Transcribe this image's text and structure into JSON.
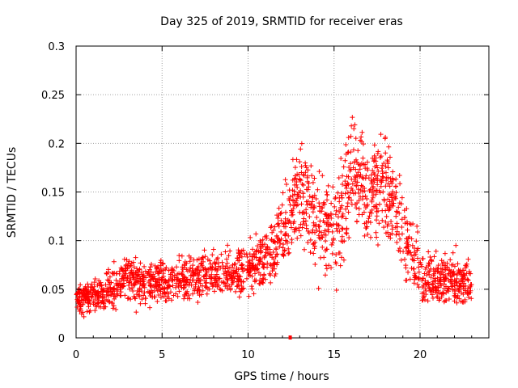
{
  "chart_data": {
    "type": "scatter",
    "title": "Day 325 of 2019, SRMTID for receiver eras",
    "xlabel": "GPS time / hours",
    "ylabel": "SRMTID / TECUs",
    "xlim": [
      0,
      24
    ],
    "ylim": [
      0,
      0.3
    ],
    "xticks": [
      0,
      5,
      10,
      15,
      20
    ],
    "yticks": [
      0,
      0.05,
      0.1,
      0.15,
      0.2,
      0.25,
      0.3
    ],
    "xtick_labels": [
      "0",
      "5",
      "10",
      "15",
      "20"
    ],
    "ytick_labels": [
      "0",
      "0.05",
      "0.1",
      "0.15",
      "0.2",
      "0.25",
      "0.3"
    ],
    "grid": true,
    "marker": "+",
    "color": "#ff0000",
    "outlier": {
      "x": 12.45,
      "y": 0.0
    },
    "trend": [
      {
        "x": 0.0,
        "mean": 0.04,
        "spread": 0.01
      },
      {
        "x": 1.0,
        "mean": 0.045,
        "spread": 0.012
      },
      {
        "x": 2.0,
        "mean": 0.048,
        "spread": 0.013
      },
      {
        "x": 3.0,
        "mean": 0.065,
        "spread": 0.018
      },
      {
        "x": 4.0,
        "mean": 0.055,
        "spread": 0.013
      },
      {
        "x": 5.0,
        "mean": 0.058,
        "spread": 0.014
      },
      {
        "x": 6.0,
        "mean": 0.06,
        "spread": 0.015
      },
      {
        "x": 7.0,
        "mean": 0.062,
        "spread": 0.015
      },
      {
        "x": 8.0,
        "mean": 0.065,
        "spread": 0.015
      },
      {
        "x": 9.0,
        "mean": 0.065,
        "spread": 0.016
      },
      {
        "x": 10.0,
        "mean": 0.072,
        "spread": 0.018
      },
      {
        "x": 11.0,
        "mean": 0.08,
        "spread": 0.02
      },
      {
        "x": 12.0,
        "mean": 0.105,
        "spread": 0.025
      },
      {
        "x": 13.0,
        "mean": 0.15,
        "spread": 0.035
      },
      {
        "x": 14.0,
        "mean": 0.12,
        "spread": 0.032
      },
      {
        "x": 15.0,
        "mean": 0.11,
        "spread": 0.035
      },
      {
        "x": 16.0,
        "mean": 0.165,
        "spread": 0.04
      },
      {
        "x": 17.0,
        "mean": 0.15,
        "spread": 0.035
      },
      {
        "x": 18.0,
        "mean": 0.165,
        "spread": 0.04
      },
      {
        "x": 19.0,
        "mean": 0.11,
        "spread": 0.03
      },
      {
        "x": 20.0,
        "mean": 0.065,
        "spread": 0.02
      },
      {
        "x": 21.0,
        "mean": 0.06,
        "spread": 0.018
      },
      {
        "x": 22.0,
        "mean": 0.06,
        "spread": 0.018
      },
      {
        "x": 23.0,
        "mean": 0.055,
        "spread": 0.015
      }
    ],
    "points_per_hour": 85,
    "x_end": 23.0
  }
}
